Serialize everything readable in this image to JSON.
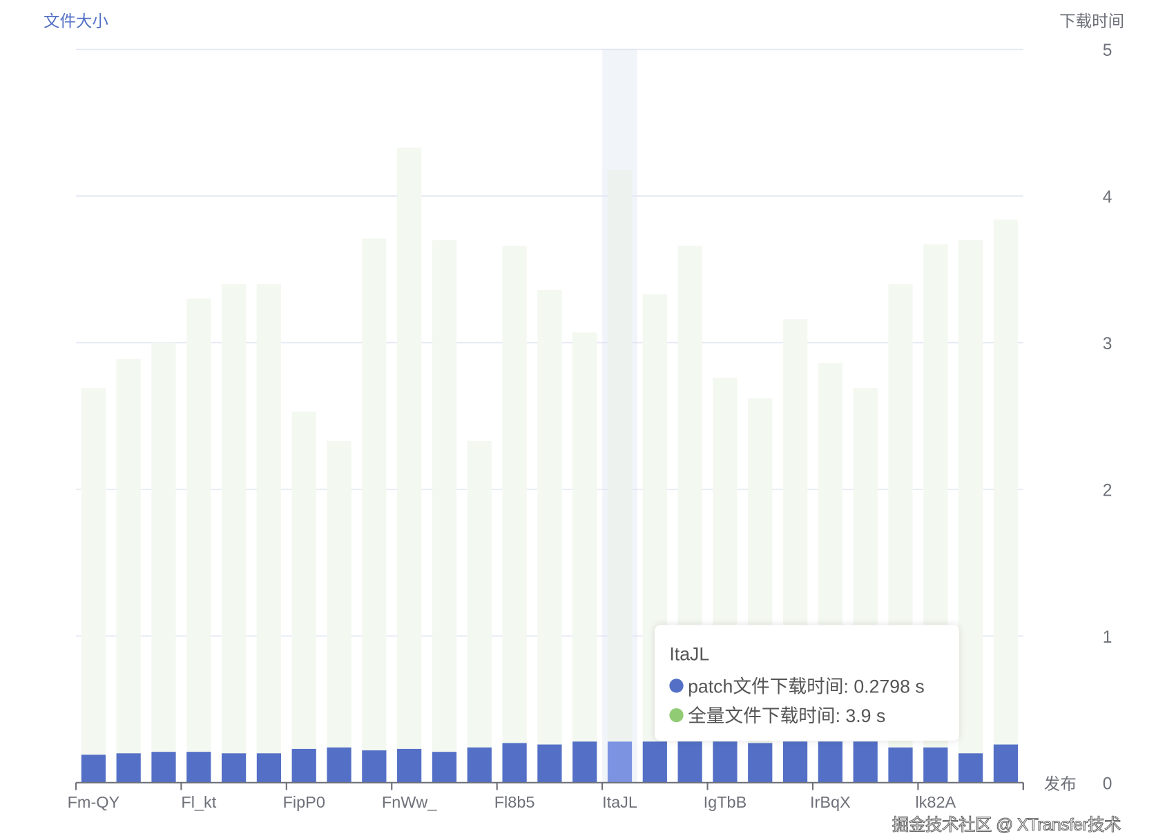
{
  "chart_data": {
    "type": "bar",
    "stacked": true,
    "y_left_label": "文件大小",
    "y_right_label": "下载时间",
    "x_name": "发布",
    "y_right_ticks": [
      "0",
      "1",
      "2",
      "3",
      "4",
      "5"
    ],
    "ylim": [
      0,
      5
    ],
    "grid": true,
    "categories": [
      "Fm-QY",
      "",
      "",
      "Fl_kt",
      "",
      "",
      "FipP0",
      "",
      "",
      "FnWw_",
      "",
      "",
      "Fl8b5",
      "",
      "",
      "ItaJL",
      "",
      "",
      "IgTbB",
      "",
      "",
      "IrBqX",
      "",
      "",
      "lk82A",
      "",
      ""
    ],
    "series": [
      {
        "name": "patch文件下载时间",
        "color": "#5470c6",
        "values": [
          0.19,
          0.2,
          0.21,
          0.21,
          0.2,
          0.2,
          0.23,
          0.24,
          0.22,
          0.23,
          0.21,
          0.24,
          0.27,
          0.26,
          0.28,
          0.2798,
          0.28,
          0.28,
          0.28,
          0.27,
          0.28,
          0.28,
          0.28,
          0.24,
          0.24,
          0.2,
          0.26
        ]
      },
      {
        "name": "全量文件下载时间",
        "color": "#91cc75",
        "values": [
          2.5,
          2.69,
          2.79,
          3.09,
          3.2,
          3.2,
          2.3,
          2.09,
          3.49,
          4.1,
          3.49,
          2.09,
          3.39,
          3.1,
          2.79,
          3.9,
          3.05,
          3.38,
          2.48,
          2.35,
          2.88,
          2.58,
          2.41,
          3.16,
          3.43,
          3.5,
          3.58
        ]
      }
    ],
    "highlighted_index": 15
  },
  "tooltip": {
    "title": "ItaJL",
    "rows": [
      {
        "label": "patch文件下载时间: 0.2798 s",
        "color": "#5470c6"
      },
      {
        "label": "全量文件下载时间: 3.9 s",
        "color": "#91cc75"
      }
    ]
  },
  "watermark": "掘金技术社区 @ XTransfer技术"
}
